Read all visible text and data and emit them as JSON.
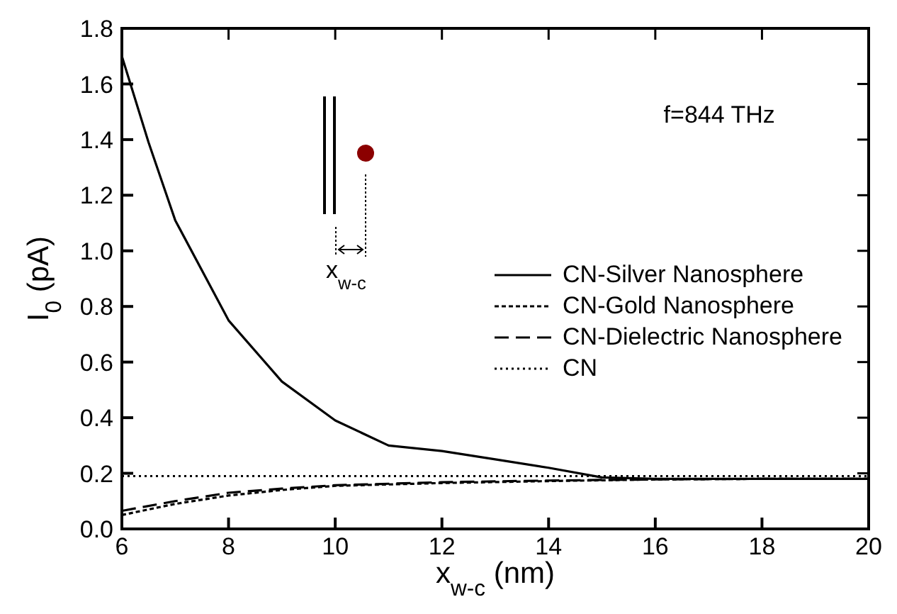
{
  "chart_data": {
    "type": "line",
    "xlabel": "x$_{w-c}$ (nm)",
    "ylabel": "I$_{0}$ (pA)",
    "annotations": [
      "f=844 THz",
      "x$_{w-c}$"
    ],
    "xlim": [
      6,
      20
    ],
    "xticks": [
      6,
      8,
      10,
      12,
      14,
      16,
      18,
      20
    ],
    "ylim": [
      0,
      1.8
    ],
    "yticks": [
      {
        "value": 0,
        "label": "0.0"
      },
      0.2,
      0.4,
      0.6,
      0.8,
      {
        "value": 1,
        "label": "1.0"
      },
      1.2,
      1.4,
      1.6,
      1.8
    ],
    "grid": false,
    "legend": "right",
    "marker": "none",
    "series": [
      {
        "name": "CN-Silver Nanosphere",
        "color": "#000000",
        "line_style": "solid",
        "x": [
          6,
          6.5,
          7,
          8,
          9,
          10,
          11,
          12,
          13,
          14,
          15,
          16,
          18,
          20
        ],
        "values": [
          1.7,
          1.39,
          1.11,
          0.75,
          0.53,
          0.39,
          0.3,
          0.28,
          0.25,
          0.22,
          0.185,
          0.18,
          0.18,
          0.18
        ]
      },
      {
        "name": "CN-Gold Nanosphere",
        "color": "#000000",
        "line_style": "dotted",
        "x": [
          6,
          7,
          8,
          9,
          10,
          12,
          14,
          16,
          18,
          20
        ],
        "values": [
          0.05,
          0.09,
          0.12,
          0.14,
          0.155,
          0.165,
          0.172,
          0.178,
          0.18,
          0.18
        ]
      },
      {
        "name": "CN-Dielectric Nanosphere",
        "color": "#000000",
        "line_style": "dashed",
        "x": [
          6,
          7,
          8,
          9,
          10,
          12,
          14,
          16,
          18,
          20
        ],
        "values": [
          0.065,
          0.1,
          0.13,
          0.145,
          0.157,
          0.168,
          0.174,
          0.178,
          0.18,
          0.18
        ]
      },
      {
        "name": "CN",
        "color": "#000000",
        "line_style": "fine-dotted",
        "x": [
          6,
          20
        ],
        "values": [
          0.19,
          0.19
        ]
      }
    ]
  }
}
